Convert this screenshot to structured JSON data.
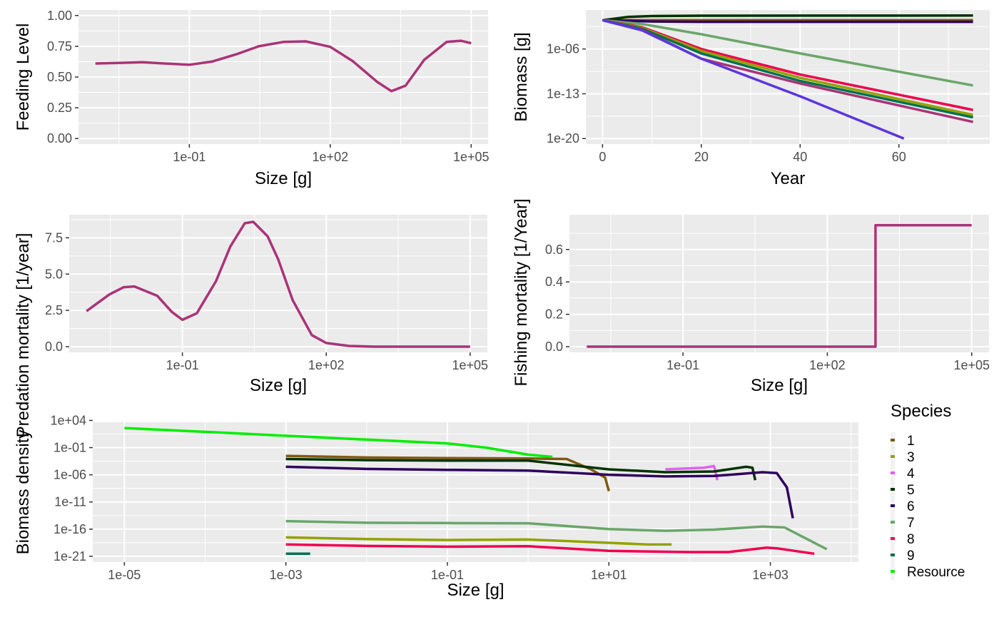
{
  "chart_data": [
    {
      "id": "feeding",
      "type": "line",
      "xlabel": "Size [g]",
      "ylabel": "Feeding Level",
      "x_scale": "log10",
      "xlim": [
        0.0001,
        100000
      ],
      "ylim": [
        0,
        1
      ],
      "x_ticks": [
        0.1,
        100,
        100000
      ],
      "x_tick_labels": [
        "1e-01",
        "1e+02",
        "1e+05"
      ],
      "y_ticks": [
        0,
        0.25,
        0.5,
        0.75,
        1.0
      ],
      "y_tick_labels": [
        "0.00",
        "0.25",
        "0.50",
        "0.75",
        "1.00"
      ],
      "color": "#AA3377",
      "points": [
        [
          0.001,
          0.61
        ],
        [
          0.003,
          0.615
        ],
        [
          0.01,
          0.62
        ],
        [
          0.03,
          0.61
        ],
        [
          0.1,
          0.6
        ],
        [
          0.3,
          0.625
        ],
        [
          1,
          0.685
        ],
        [
          3,
          0.75
        ],
        [
          10,
          0.785
        ],
        [
          30,
          0.79
        ],
        [
          100,
          0.745
        ],
        [
          300,
          0.63
        ],
        [
          1000,
          0.46
        ],
        [
          2000,
          0.385
        ],
        [
          4000,
          0.43
        ],
        [
          10000,
          0.64
        ],
        [
          30000,
          0.785
        ],
        [
          60000,
          0.795
        ],
        [
          100000,
          0.775
        ]
      ]
    },
    {
      "id": "biomass_time",
      "type": "line",
      "xlabel": "Year",
      "ylabel": "Biomass [g]",
      "y_scale": "log10",
      "xlim": [
        0,
        75
      ],
      "ylim": [
        1e-20,
        1
      ],
      "x_ticks": [
        0,
        20,
        40,
        60
      ],
      "x_tick_labels": [
        "0",
        "20",
        "40",
        "60"
      ],
      "y_ticks": [
        1e-20,
        1e-13,
        1e-06
      ],
      "y_tick_labels": [
        "1e-20",
        "1e-13",
        "1e-06"
      ],
      "series": [
        {
          "color": "#7F5A10",
          "points": [
            [
              0,
              0.0316
            ],
            [
              5,
              0.0316
            ],
            [
              75,
              0.0316
            ]
          ]
        },
        {
          "color": "#003300",
          "points": [
            [
              0,
              0.0316
            ],
            [
              5,
              0.1
            ],
            [
              10,
              0.14
            ],
            [
              20,
              0.16
            ],
            [
              75,
              0.17
            ]
          ]
        },
        {
          "color": "#2E005E",
          "points": [
            [
              0,
              0.0316
            ],
            [
              10,
              0.02
            ],
            [
              20,
              0.0178
            ],
            [
              75,
              0.0178
            ]
          ]
        },
        {
          "color": "#6AA66A",
          "points": [
            [
              0,
              0.0316
            ],
            [
              8,
              0.008
            ],
            [
              20,
              0.0002
            ],
            [
              40,
              2e-07
            ],
            [
              75,
              2e-12
            ]
          ]
        },
        {
          "color": "#F0004E",
          "points": [
            [
              0,
              0.0316
            ],
            [
              8,
              0.0025
            ],
            [
              20,
              1e-06
            ],
            [
              40,
              1e-10
            ],
            [
              75,
              3e-16
            ]
          ]
        },
        {
          "color": "#92A200",
          "points": [
            [
              0,
              0.0316
            ],
            [
              8,
              0.002
            ],
            [
              20,
              5e-07
            ],
            [
              40,
              3e-11
            ],
            [
              75,
              5e-17
            ]
          ]
        },
        {
          "color": "#007050",
          "points": [
            [
              0,
              0.0316
            ],
            [
              8,
              0.0015
            ],
            [
              20,
              2e-07
            ],
            [
              40,
              1e-11
            ],
            [
              75,
              2e-17
            ]
          ]
        },
        {
          "color": "#AA3377",
          "points": [
            [
              0,
              0.0316
            ],
            [
              8,
              0.001
            ],
            [
              20,
              3e-08
            ],
            [
              40,
              4e-12
            ],
            [
              75,
              4e-18
            ]
          ]
        },
        {
          "color": "#5B35E0",
          "points": [
            [
              0,
              0.0316
            ],
            [
              8,
              0.0008
            ],
            [
              20,
              3e-08
            ],
            [
              40,
              4e-14
            ],
            [
              61,
              1e-20
            ]
          ]
        }
      ]
    },
    {
      "id": "predation",
      "type": "line",
      "xlabel": "Size [g]",
      "ylabel": "Predation mortality [1/year]",
      "x_scale": "log10",
      "xlim": [
        0.0001,
        100000
      ],
      "ylim": [
        0,
        8.7
      ],
      "x_ticks": [
        0.1,
        100,
        100000
      ],
      "x_tick_labels": [
        "1e-01",
        "1e+02",
        "1e+05"
      ],
      "y_ticks": [
        0,
        2.5,
        5,
        7.5
      ],
      "y_tick_labels": [
        "0.0",
        "2.5",
        "5.0",
        "7.5"
      ],
      "color": "#AA3377",
      "points": [
        [
          0.001,
          2.45
        ],
        [
          0.003,
          3.6
        ],
        [
          0.006,
          4.1
        ],
        [
          0.01,
          4.15
        ],
        [
          0.03,
          3.5
        ],
        [
          0.06,
          2.4
        ],
        [
          0.1,
          1.85
        ],
        [
          0.2,
          2.3
        ],
        [
          0.5,
          4.5
        ],
        [
          1,
          6.9
        ],
        [
          2,
          8.5
        ],
        [
          3,
          8.6
        ],
        [
          6,
          7.6
        ],
        [
          10,
          6.0
        ],
        [
          20,
          3.2
        ],
        [
          50,
          0.8
        ],
        [
          100,
          0.25
        ],
        [
          300,
          0.05
        ],
        [
          1000,
          0.0
        ],
        [
          100000,
          0.0
        ]
      ]
    },
    {
      "id": "fishing",
      "type": "line",
      "xlabel": "Size [g]",
      "ylabel": "Fishing mortality [1/Year]",
      "x_scale": "log10",
      "xlim": [
        0.0001,
        100000
      ],
      "ylim": [
        0,
        0.78
      ],
      "x_ticks": [
        0.1,
        100,
        100000
      ],
      "x_tick_labels": [
        "1e-01",
        "1e+02",
        "1e+05"
      ],
      "y_ticks": [
        0,
        0.2,
        0.4,
        0.6
      ],
      "y_tick_labels": [
        "0.0",
        "0.2",
        "0.4",
        "0.6"
      ],
      "color": "#AA3377",
      "points": [
        [
          0.001,
          0
        ],
        [
          1000,
          0
        ],
        [
          1000,
          0.75
        ],
        [
          100000,
          0.75
        ]
      ]
    },
    {
      "id": "biomass_density",
      "type": "line",
      "xlabel": "Size [g]",
      "ylabel": "Biomass density",
      "x_scale": "log10",
      "y_scale": "log10",
      "xlim": [
        1e-05,
        10000
      ],
      "ylim": [
        1e-21,
        10000.0
      ],
      "x_ticks": [
        1e-05,
        0.001,
        0.1,
        10,
        1000
      ],
      "x_tick_labels": [
        "1e-05",
        "1e-03",
        "1e-01",
        "1e+01",
        "1e+03"
      ],
      "y_ticks": [
        1e-21,
        1e-16,
        1e-11,
        1e-06,
        0.1,
        10000.0
      ],
      "y_tick_labels": [
        "1e-21",
        "1e-16",
        "1e-11",
        "1e-06",
        "1e-01",
        "1e+04"
      ],
      "legend_title": "Species",
      "legend_position": "right",
      "series": [
        {
          "name": "1",
          "color": "#7F5A10",
          "points": [
            [
              0.001,
              0.003
            ],
            [
              0.01,
              0.0015
            ],
            [
              0.1,
              0.0012
            ],
            [
              1,
              0.001
            ],
            [
              3,
              0.0008
            ],
            [
              6,
              1e-05
            ],
            [
              9,
              3e-07
            ],
            [
              10,
              1e-09
            ]
          ]
        },
        {
          "name": "3",
          "color": "#92A200",
          "points": [
            [
              0.001,
              3e-18
            ],
            [
              0.01,
              1.5e-18
            ],
            [
              0.1,
              1e-18
            ],
            [
              1,
              1.2e-18
            ],
            [
              10,
              3e-19
            ],
            [
              30,
              1.5e-19
            ],
            [
              60,
              1.5e-19
            ]
          ]
        },
        {
          "name": "4",
          "color": "#E060F0",
          "points": [
            [
              50,
              1e-05
            ],
            [
              150,
              2e-05
            ],
            [
              200,
              4e-05
            ],
            [
              210,
              3e-06
            ],
            [
              220,
              1e-07
            ]
          ]
        },
        {
          "name": "5",
          "color": "#003300",
          "points": [
            [
              0.001,
              0.0008
            ],
            [
              0.01,
              0.0005
            ],
            [
              0.1,
              0.0004
            ],
            [
              1,
              0.0004
            ],
            [
              10,
              1e-05
            ],
            [
              50,
              3e-06
            ],
            [
              200,
              4e-06
            ],
            [
              500,
              3e-05
            ],
            [
              600,
              2e-05
            ],
            [
              650,
              1e-07
            ]
          ]
        },
        {
          "name": "6",
          "color": "#2E005E",
          "points": [
            [
              0.001,
              3e-05
            ],
            [
              0.01,
              1.2e-05
            ],
            [
              0.1,
              8e-06
            ],
            [
              1,
              6e-06
            ],
            [
              10,
              1e-06
            ],
            [
              50,
              5e-07
            ],
            [
              200,
              6e-07
            ],
            [
              800,
              3e-06
            ],
            [
              1200,
              2e-06
            ],
            [
              1600,
              5e-09
            ],
            [
              1900,
              1e-14
            ]
          ]
        },
        {
          "name": "7",
          "color": "#6AA66A",
          "points": [
            [
              0.001,
              3e-15
            ],
            [
              0.01,
              1.5e-15
            ],
            [
              0.1,
              1.3e-15
            ],
            [
              1,
              1.2e-15
            ],
            [
              10,
              1e-16
            ],
            [
              50,
              5e-17
            ],
            [
              200,
              8e-17
            ],
            [
              800,
              3e-16
            ],
            [
              1500,
              2e-16
            ],
            [
              3000,
              1e-18
            ],
            [
              5000,
              2e-20
            ]
          ]
        },
        {
          "name": "8",
          "color": "#F0004E",
          "points": [
            [
              0.001,
              1.5e-19
            ],
            [
              0.01,
              8e-20
            ],
            [
              0.1,
              6e-20
            ],
            [
              1,
              7e-20
            ],
            [
              10,
              1e-20
            ],
            [
              100,
              6e-21
            ],
            [
              300,
              6e-21
            ],
            [
              900,
              4e-20
            ],
            [
              1200,
              3e-20
            ],
            [
              3500,
              3e-21
            ]
          ]
        },
        {
          "name": "9",
          "color": "#007050",
          "points": [
            [
              0.001,
              3e-21
            ],
            [
              0.002,
              3e-21
            ]
          ]
        },
        {
          "name": "Resource",
          "color": "#00EE00",
          "points": [
            [
              1e-05,
              400
            ],
            [
              0.0001,
              80
            ],
            [
              0.001,
              15
            ],
            [
              0.01,
              3
            ],
            [
              0.1,
              0.6
            ],
            [
              0.3,
              0.1
            ],
            [
              1,
              0.005
            ],
            [
              2,
              0.002
            ]
          ]
        }
      ]
    }
  ]
}
